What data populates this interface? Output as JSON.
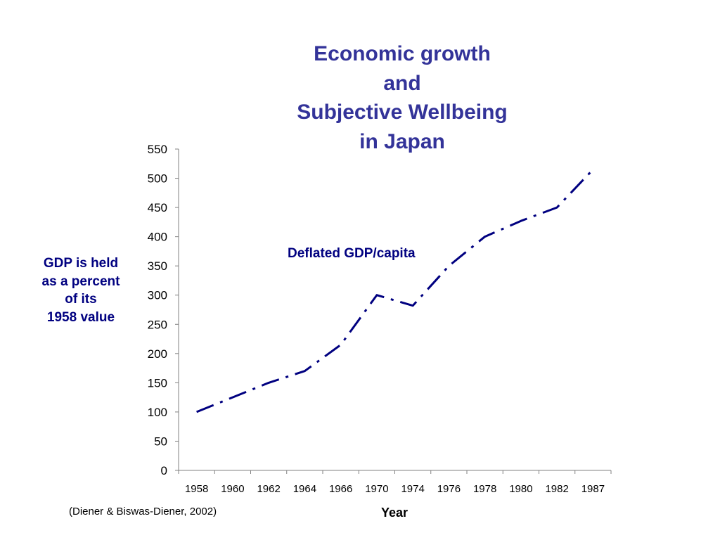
{
  "title_lines": [
    "Economic growth",
    "and",
    "Subjective Wellbeing",
    "in Japan"
  ],
  "ylabel_lines": [
    "GDP is held",
    "as a percent",
    "of its",
    "1958 value"
  ],
  "xlabel": "Year",
  "source": "(Diener & Biswas-Diener, 2002)",
  "colors": {
    "title": "#333399",
    "series": "#000080"
  },
  "chart_data": {
    "type": "line",
    "title": "Economic growth and Subjective Wellbeing in Japan",
    "xlabel": "Year",
    "ylabel": "GDP is held as a percent of its 1958 value",
    "categories": [
      "1958",
      "1960",
      "1962",
      "1964",
      "1966",
      "1970",
      "1974",
      "1976",
      "1978",
      "1980",
      "1982",
      "1987"
    ],
    "ylim": [
      0,
      550
    ],
    "yticks": [
      0,
      50,
      100,
      150,
      200,
      250,
      300,
      350,
      400,
      450,
      500,
      550
    ],
    "grid": false,
    "legend": "none",
    "series": [
      {
        "name": "Deflated GDP/capita",
        "line_style": "dash-dot",
        "values": [
          100,
          125,
          150,
          170,
          215,
          300,
          282,
          350,
          400,
          427,
          450,
          515
        ]
      }
    ]
  }
}
